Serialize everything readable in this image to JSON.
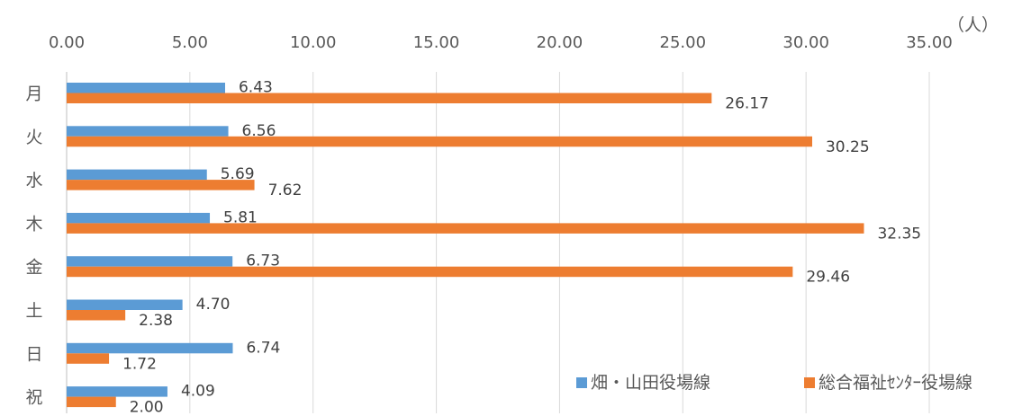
{
  "chart_data": {
    "type": "bar",
    "orientation": "horizontal",
    "unit_label": "（人）",
    "categories": [
      "月",
      "火",
      "水",
      "木",
      "金",
      "土",
      "日",
      "祝"
    ],
    "x_ticks": [
      "0.00",
      "5.00",
      "10.00",
      "15.00",
      "20.00",
      "25.00",
      "30.00",
      "35.00"
    ],
    "xlim": [
      0,
      35
    ],
    "grid": true,
    "axis_position": "top",
    "legend_position": "bottom-right",
    "series": [
      {
        "name": "畑・山田役場線",
        "color": "#5B9BD5",
        "values": [
          6.43,
          6.56,
          5.69,
          5.81,
          6.73,
          4.7,
          6.74,
          4.09
        ],
        "labels": [
          "6.43",
          "6.56",
          "5.69",
          "5.81",
          "6.73",
          "4.70",
          "6.74",
          "4.09"
        ]
      },
      {
        "name": "総合福祉ｾﾝﾀｰ役場線",
        "color": "#ED7D31",
        "values": [
          26.17,
          30.25,
          7.62,
          32.35,
          29.46,
          2.38,
          1.72,
          2.0
        ],
        "labels": [
          "26.17",
          "30.25",
          "7.62",
          "32.35",
          "29.46",
          "2.38",
          "1.72",
          "2.00"
        ]
      }
    ]
  }
}
